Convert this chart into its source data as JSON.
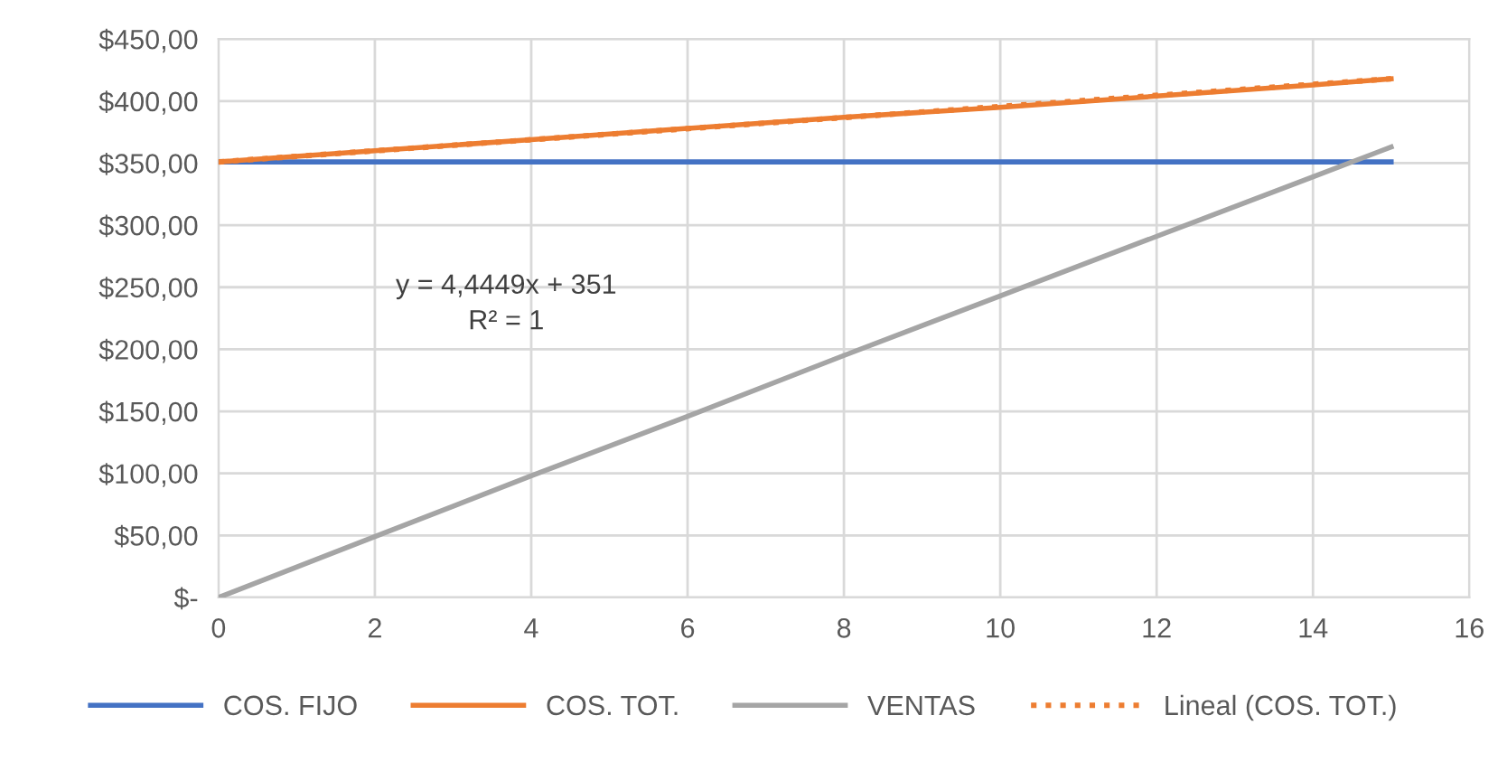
{
  "chart_data": {
    "type": "line",
    "x": [
      0,
      2,
      4,
      6,
      8,
      10,
      12,
      14,
      15
    ],
    "series": [
      {
        "name": "COS. FIJO",
        "color": "#4472c4",
        "values": [
          351,
          351,
          351,
          351,
          351,
          351,
          351,
          351,
          351
        ]
      },
      {
        "name": "COS. TOT.",
        "color": "#ed7d31",
        "values": [
          351,
          360,
          369,
          378,
          387,
          395,
          404,
          413,
          418
        ]
      },
      {
        "name": "VENTAS",
        "color": "#a5a5a5",
        "values": [
          0,
          49,
          98,
          146,
          195,
          243,
          291,
          339,
          363
        ]
      },
      {
        "name": "Lineal (COS. TOT.)",
        "color": "#ed7d31",
        "line_style": "dotted",
        "x": [
          0,
          15
        ],
        "values": [
          351,
          418
        ]
      }
    ],
    "xlim": [
      0,
      16
    ],
    "xticks": [
      0,
      2,
      4,
      6,
      8,
      10,
      12,
      14,
      16
    ],
    "ylim": [
      0,
      450
    ],
    "yticks": [
      {
        "value": 0,
        "label": "$-"
      },
      {
        "value": 50,
        "label": "$50,00"
      },
      {
        "value": 100,
        "label": "$100,00"
      },
      {
        "value": 150,
        "label": "$150,00"
      },
      {
        "value": 200,
        "label": "$200,00"
      },
      {
        "value": 250,
        "label": "$250,00"
      },
      {
        "value": 300,
        "label": "$300,00"
      },
      {
        "value": 350,
        "label": "$350,00"
      },
      {
        "value": 400,
        "label": "$400,00"
      },
      {
        "value": 450,
        "label": "$450,00"
      }
    ],
    "grid": true,
    "legend": "bottom",
    "marker": "none",
    "line_style": "solid",
    "annotations": [
      "y = 4,4449x + 351\nR² = 1"
    ]
  }
}
